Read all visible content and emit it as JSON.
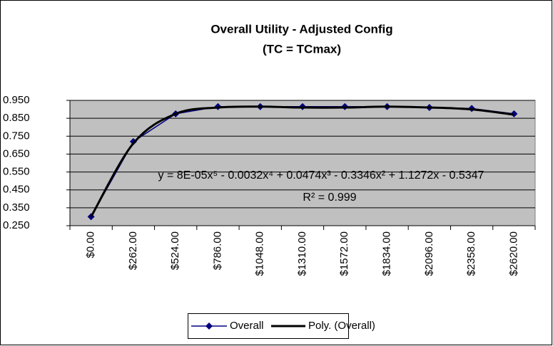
{
  "chart_data": {
    "type": "line",
    "title": "Overall Utility - Adjusted Config",
    "subtitle": "(TC = TCmax)",
    "categories": [
      "$0.00",
      "$262.00",
      "$524.00",
      "$786.00",
      "$1048.00",
      "$1310.00",
      "$1572.00",
      "$1834.00",
      "$2096.00",
      "$2358.00",
      "$2620.00"
    ],
    "series": [
      {
        "name": "Overall",
        "color": "#000080",
        "values": [
          0.3,
          0.72,
          0.875,
          0.915,
          0.915,
          0.915,
          0.915,
          0.915,
          0.91,
          0.905,
          0.875
        ]
      },
      {
        "name": "Poly. (Overall)",
        "color": "#000000",
        "values": [
          0.3,
          0.71,
          0.875,
          0.91,
          0.915,
          0.91,
          0.91,
          0.915,
          0.91,
          0.9,
          0.87
        ]
      }
    ],
    "ylim": [
      0.25,
      0.95
    ],
    "yticks": [
      {
        "value": 0.25,
        "label": "0.250"
      },
      {
        "value": 0.35,
        "label": "0.350"
      },
      {
        "value": 0.45,
        "label": "0.450"
      },
      {
        "value": 0.55,
        "label": "0.550"
      },
      {
        "value": 0.65,
        "label": "0.650"
      },
      {
        "value": 0.75,
        "label": "0.750"
      },
      {
        "value": 0.85,
        "label": "0.850"
      },
      {
        "value": 0.95,
        "label": "0.950"
      }
    ],
    "grid": true,
    "plot_background": "#c0c0c0",
    "annotations": [
      "y = 8E-05x⁵ - 0.0032x⁴ + 0.0474x³ - 0.3346x² + 1.1272x - 0.5347",
      "R² = 0.999"
    ]
  }
}
